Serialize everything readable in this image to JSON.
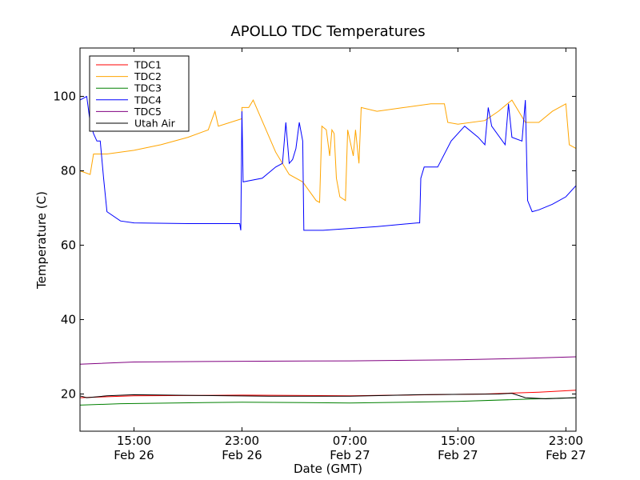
{
  "chart_data": {
    "type": "line",
    "title": "APOLLO TDC Temperatures",
    "xlabel": "Date (GMT)",
    "ylabel": "Temperature (C)",
    "xlim": [
      "2009-02-26T11:00",
      "2009-02-27T23:45"
    ],
    "ylim": [
      10,
      113
    ],
    "x_ticks": [
      {
        "time": "2009-02-26T15:00",
        "label1": "15:00",
        "label2": "Feb 26"
      },
      {
        "time": "2009-02-26T23:00",
        "label1": "23:00",
        "label2": "Feb 26"
      },
      {
        "time": "2009-02-27T07:00",
        "label1": "07:00",
        "label2": "Feb 27"
      },
      {
        "time": "2009-02-27T15:00",
        "label1": "15:00",
        "label2": "Feb 27"
      },
      {
        "time": "2009-02-27T23:00",
        "label1": "23:00",
        "label2": "Feb 27"
      }
    ],
    "y_ticks": [
      20,
      40,
      60,
      80,
      100
    ],
    "grid": false,
    "legend_position": "top-left",
    "series": [
      {
        "name": "TDC1",
        "color": "#ff0000",
        "points": [
          [
            "2009-02-26T11:00",
            19
          ],
          [
            "2009-02-26T15:00",
            19.5
          ],
          [
            "2009-02-26T23:00",
            19.7
          ],
          [
            "2009-02-27T07:00",
            19.5
          ],
          [
            "2009-02-27T13:00",
            19.8
          ],
          [
            "2009-02-27T17:00",
            20
          ],
          [
            "2009-02-27T21:00",
            20.5
          ],
          [
            "2009-02-27T23:45",
            21
          ]
        ]
      },
      {
        "name": "TDC2",
        "color": "#ffa500",
        "points": [
          [
            "2009-02-26T11:00",
            80
          ],
          [
            "2009-02-26T11:45",
            79
          ],
          [
            "2009-02-26T12:00",
            84.5
          ],
          [
            "2009-02-26T13:00",
            84.5
          ],
          [
            "2009-02-26T15:00",
            85.5
          ],
          [
            "2009-02-26T17:00",
            87
          ],
          [
            "2009-02-26T19:00",
            89
          ],
          [
            "2009-02-26T20:30",
            91
          ],
          [
            "2009-02-26T21:00",
            96
          ],
          [
            "2009-02-26T21:15",
            92
          ],
          [
            "2009-02-26T23:00",
            94
          ],
          [
            "2009-02-26T23:00",
            97
          ],
          [
            "2009-02-26T23:30",
            97
          ],
          [
            "2009-02-26T23:50",
            99
          ],
          [
            "2009-02-27T01:30",
            85
          ],
          [
            "2009-02-27T02:30",
            79
          ],
          [
            "2009-02-27T03:30",
            77
          ],
          [
            "2009-02-27T04:30",
            72
          ],
          [
            "2009-02-27T04:45",
            71.5
          ],
          [
            "2009-02-27T04:55",
            92
          ],
          [
            "2009-02-27T05:15",
            91
          ],
          [
            "2009-02-27T05:30",
            84
          ],
          [
            "2009-02-27T05:40",
            91
          ],
          [
            "2009-02-27T05:50",
            90
          ],
          [
            "2009-02-27T06:00",
            78
          ],
          [
            "2009-02-27T06:15",
            73
          ],
          [
            "2009-02-27T06:40",
            72
          ],
          [
            "2009-02-27T06:50",
            91
          ],
          [
            "2009-02-27T07:15",
            84
          ],
          [
            "2009-02-27T07:25",
            91
          ],
          [
            "2009-02-27T07:40",
            82
          ],
          [
            "2009-02-27T07:50",
            97
          ],
          [
            "2009-02-27T09:00",
            96
          ],
          [
            "2009-02-27T11:00",
            97
          ],
          [
            "2009-02-27T13:00",
            98
          ],
          [
            "2009-02-27T14:00",
            98
          ],
          [
            "2009-02-27T14:15",
            93
          ],
          [
            "2009-02-27T15:00",
            92.5
          ],
          [
            "2009-02-27T17:00",
            93.5
          ],
          [
            "2009-02-27T18:00",
            96
          ],
          [
            "2009-02-27T19:00",
            99
          ],
          [
            "2009-02-27T20:00",
            93
          ],
          [
            "2009-02-27T21:00",
            93
          ],
          [
            "2009-02-27T22:00",
            96
          ],
          [
            "2009-02-27T23:00",
            98
          ],
          [
            "2009-02-27T23:15",
            87
          ],
          [
            "2009-02-27T23:45",
            86
          ]
        ]
      },
      {
        "name": "TDC3",
        "color": "#008000",
        "points": [
          [
            "2009-02-26T11:00",
            17
          ],
          [
            "2009-02-26T14:00",
            17.4
          ],
          [
            "2009-02-26T23:00",
            17.8
          ],
          [
            "2009-02-27T07:00",
            17.6
          ],
          [
            "2009-02-27T15:00",
            18
          ],
          [
            "2009-02-27T20:00",
            18.6
          ],
          [
            "2009-02-27T23:45",
            19
          ]
        ]
      },
      {
        "name": "TDC4",
        "color": "#0000ff",
        "points": [
          [
            "2009-02-26T11:00",
            99
          ],
          [
            "2009-02-26T11:30",
            100
          ],
          [
            "2009-02-26T11:45",
            93
          ],
          [
            "2009-02-26T12:00",
            90
          ],
          [
            "2009-02-26T12:15",
            88
          ],
          [
            "2009-02-26T12:30",
            88
          ],
          [
            "2009-02-26T12:45",
            78
          ],
          [
            "2009-02-26T13:00",
            69
          ],
          [
            "2009-02-26T14:00",
            66.5
          ],
          [
            "2009-02-26T15:00",
            66
          ],
          [
            "2009-02-26T19:00",
            65.8
          ],
          [
            "2009-02-26T22:50",
            65.8
          ],
          [
            "2009-02-26T22:55",
            64
          ],
          [
            "2009-02-26T23:00",
            96
          ],
          [
            "2009-02-26T23:05",
            77
          ],
          [
            "2009-02-27T00:30",
            78
          ],
          [
            "2009-02-27T01:30",
            81
          ],
          [
            "2009-02-27T02:00",
            82
          ],
          [
            "2009-02-27T02:15",
            93
          ],
          [
            "2009-02-27T02:30",
            82
          ],
          [
            "2009-02-27T02:45",
            83
          ],
          [
            "2009-02-27T03:00",
            86
          ],
          [
            "2009-02-27T03:15",
            93
          ],
          [
            "2009-02-27T03:30",
            88
          ],
          [
            "2009-02-27T03:35",
            64
          ],
          [
            "2009-02-27T05:00",
            64
          ],
          [
            "2009-02-27T09:00",
            65
          ],
          [
            "2009-02-27T12:00",
            66
          ],
          [
            "2009-02-27T12:10",
            66
          ],
          [
            "2009-02-27T12:15",
            78
          ],
          [
            "2009-02-27T12:30",
            81
          ],
          [
            "2009-02-27T13:30",
            81
          ],
          [
            "2009-02-27T14:30",
            88
          ],
          [
            "2009-02-27T15:30",
            92
          ],
          [
            "2009-02-27T16:30",
            89
          ],
          [
            "2009-02-27T17:00",
            87
          ],
          [
            "2009-02-27T17:15",
            97
          ],
          [
            "2009-02-27T17:30",
            92
          ],
          [
            "2009-02-27T18:30",
            87
          ],
          [
            "2009-02-27T18:45",
            98
          ],
          [
            "2009-02-27T19:00",
            89
          ],
          [
            "2009-02-27T19:45",
            88
          ],
          [
            "2009-02-27T20:00",
            99
          ],
          [
            "2009-02-27T20:10",
            72
          ],
          [
            "2009-02-27T20:30",
            69
          ],
          [
            "2009-02-27T21:00",
            69.5
          ],
          [
            "2009-02-27T22:00",
            71
          ],
          [
            "2009-02-27T23:00",
            73
          ],
          [
            "2009-02-27T23:45",
            76
          ]
        ]
      },
      {
        "name": "TDC5",
        "color": "#800080",
        "points": [
          [
            "2009-02-26T11:00",
            28
          ],
          [
            "2009-02-26T15:00",
            28.6
          ],
          [
            "2009-02-26T23:00",
            28.8
          ],
          [
            "2009-02-27T07:00",
            28.9
          ],
          [
            "2009-02-27T15:00",
            29.2
          ],
          [
            "2009-02-27T20:00",
            29.6
          ],
          [
            "2009-02-27T23:45",
            30
          ]
        ]
      },
      {
        "name": "Utah Air",
        "color": "#000000",
        "points": [
          [
            "2009-02-26T11:00",
            19.5
          ],
          [
            "2009-02-26T11:30",
            19
          ],
          [
            "2009-02-26T13:00",
            19.5
          ],
          [
            "2009-02-26T15:00",
            19.8
          ],
          [
            "2009-02-26T20:00",
            19.6
          ],
          [
            "2009-02-27T01:00",
            19.4
          ],
          [
            "2009-02-27T07:00",
            19.4
          ],
          [
            "2009-02-27T12:00",
            19.8
          ],
          [
            "2009-02-27T18:00",
            20
          ],
          [
            "2009-02-27T19:00",
            20.2
          ],
          [
            "2009-02-27T20:00",
            19
          ],
          [
            "2009-02-27T21:30",
            18.7
          ],
          [
            "2009-02-27T23:45",
            19
          ]
        ]
      }
    ]
  }
}
